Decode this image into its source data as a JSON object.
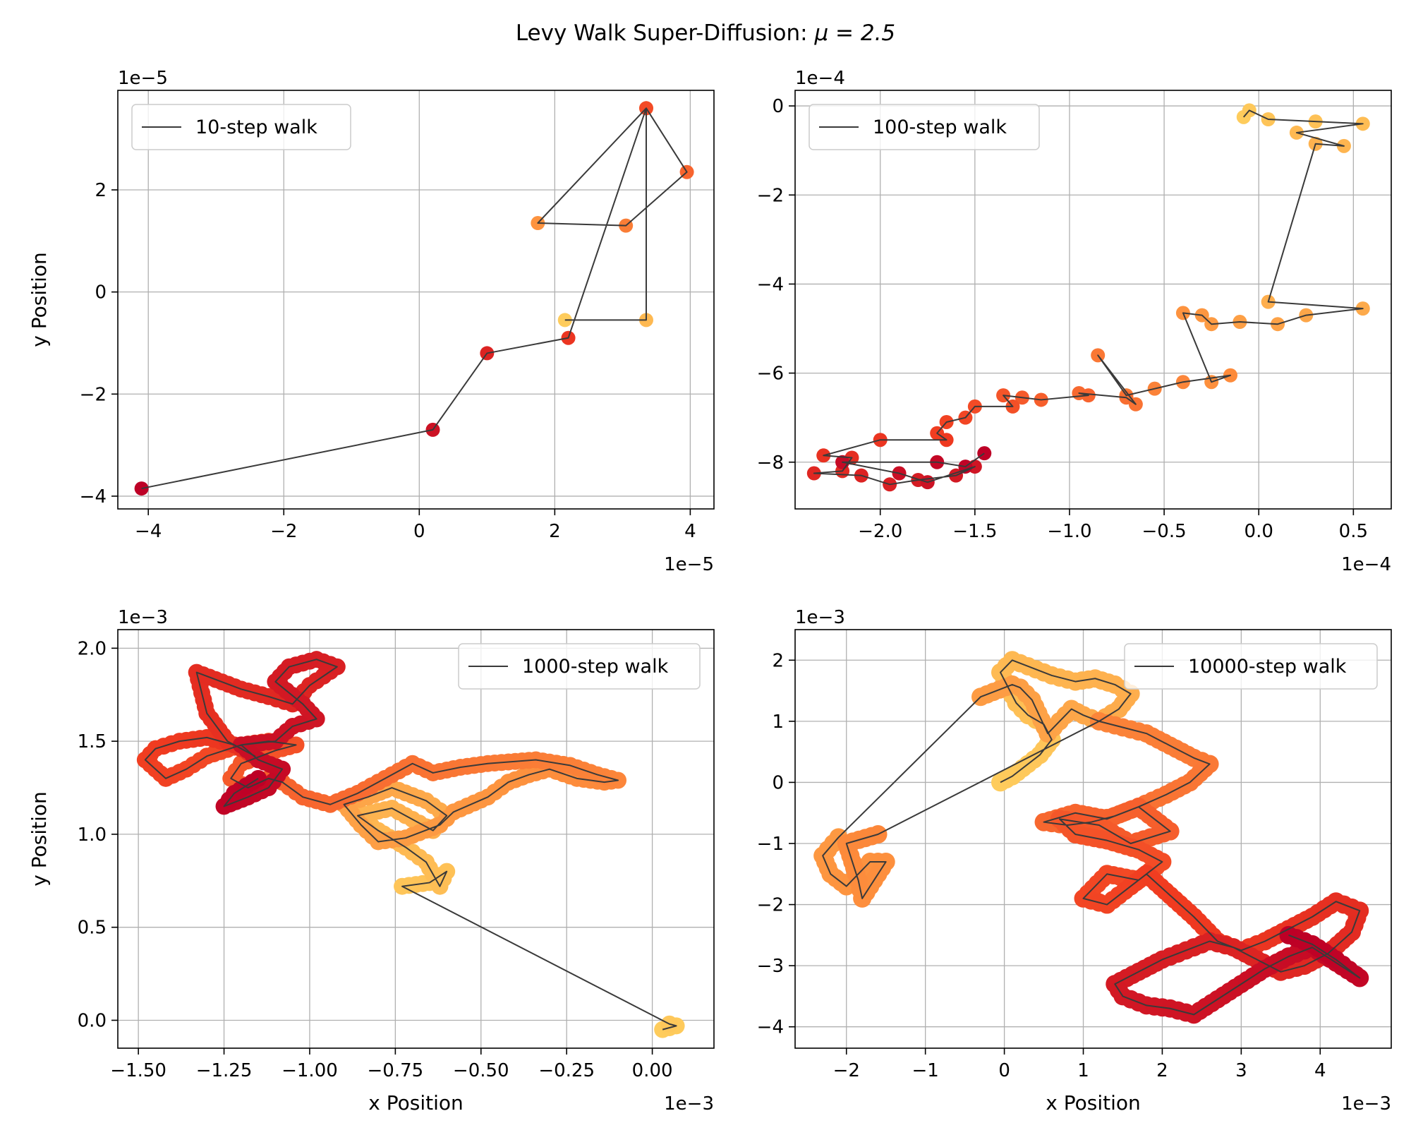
{
  "suptitle": "Levy Walk Super-Diffusion: ",
  "suptitle_math": "μ = 2.5",
  "colors": {
    "line": "#3a3a3a",
    "grid": "#b0b0b0",
    "axes": "#000000",
    "cmap": [
      "#fecc5c",
      "#fd8d3c",
      "#f03b20",
      "#bd0026"
    ]
  },
  "chart_data": [
    {
      "type": "line",
      "series": [
        {
          "name": "10-step walk"
        }
      ],
      "legend": "upper left",
      "grid": true,
      "x_offset_label": "1e−5",
      "y_offset_label": "1e−5",
      "xlabel": "",
      "ylabel": "y Position",
      "xlim": [
        -4.45,
        4.35
      ],
      "ylim": [
        -4.25,
        3.95
      ],
      "xticks": [
        -4,
        -2,
        0,
        2,
        4
      ],
      "yticks": [
        -4,
        -2,
        0,
        2
      ],
      "xticklabels": [
        "−4",
        "−2",
        "0",
        "2",
        "4"
      ],
      "yticklabels": [
        "−4",
        "−2",
        "0",
        "2"
      ],
      "x": [
        2.15,
        3.35,
        3.35,
        1.75,
        3.05,
        3.95,
        3.35,
        2.2,
        1.0,
        0.2,
        -4.1
      ],
      "y": [
        -0.55,
        -0.55,
        3.6,
        1.35,
        1.3,
        2.35,
        3.6,
        -0.9,
        -1.2,
        -2.7,
        -3.85
      ]
    },
    {
      "type": "line",
      "series": [
        {
          "name": "100-step walk"
        }
      ],
      "legend": "upper left",
      "grid": true,
      "x_offset_label": "1e−4",
      "y_offset_label": "1e−4",
      "xlabel": "",
      "ylabel": "",
      "xlim": [
        -2.45,
        0.7
      ],
      "ylim": [
        -9.05,
        0.35
      ],
      "xticks": [
        -2.0,
        -1.5,
        -1.0,
        -0.5,
        0.0,
        0.5
      ],
      "yticks": [
        -8,
        -6,
        -4,
        -2,
        0
      ],
      "xticklabels": [
        "−2.0",
        "−1.5",
        "−1.0",
        "−0.5",
        "0.0",
        "0.5"
      ],
      "yticklabels": [
        "−8",
        "−6",
        "−4",
        "−2",
        "0"
      ],
      "x": [
        -0.08,
        -0.05,
        0.05,
        0.3,
        0.55,
        0.2,
        0.45,
        0.3,
        0.05,
        0.55,
        0.25,
        0.1,
        -0.1,
        -0.25,
        -0.3,
        -0.4,
        -0.25,
        -0.15,
        -0.4,
        -0.55,
        -0.7,
        -0.85,
        -0.65,
        -0.7,
        -0.95,
        -0.9,
        -1.15,
        -1.25,
        -1.35,
        -1.3,
        -1.5,
        -1.55,
        -1.65,
        -1.7,
        -1.65,
        -2.0,
        -2.3,
        -2.15,
        -2.2,
        -2.35,
        -2.1,
        -1.95,
        -1.8,
        -1.6,
        -1.5,
        -1.75,
        -1.9,
        -2.2,
        -1.7,
        -1.55,
        -1.45
      ],
      "y": [
        -0.25,
        -0.1,
        -0.3,
        -0.35,
        -0.4,
        -0.6,
        -0.9,
        -0.85,
        -4.4,
        -4.55,
        -4.7,
        -4.9,
        -4.85,
        -4.9,
        -4.7,
        -4.65,
        -6.2,
        -6.05,
        -6.2,
        -6.35,
        -6.5,
        -5.6,
        -6.7,
        -6.55,
        -6.45,
        -6.5,
        -6.6,
        -6.55,
        -6.5,
        -6.75,
        -6.75,
        -7.0,
        -7.1,
        -7.35,
        -7.5,
        -7.5,
        -7.85,
        -7.9,
        -8.2,
        -8.25,
        -8.3,
        -8.5,
        -8.4,
        -8.3,
        -8.1,
        -8.45,
        -8.25,
        -8.0,
        -8.0,
        -8.1,
        -7.8
      ]
    },
    {
      "type": "line",
      "series": [
        {
          "name": "1000-step walk"
        }
      ],
      "legend": "upper right",
      "grid": true,
      "x_offset_label": "1e−3",
      "y_offset_label": "1e−3",
      "xlabel": "x Position",
      "ylabel": "y Position",
      "xlim": [
        -1.56,
        0.18
      ],
      "ylim": [
        -0.15,
        2.1
      ],
      "xticks": [
        -1.5,
        -1.25,
        -1.0,
        -0.75,
        -0.5,
        -0.25,
        0.0
      ],
      "yticks": [
        0.0,
        0.5,
        1.0,
        1.5,
        2.0
      ],
      "xticklabels": [
        "−1.50",
        "−1.25",
        "−1.00",
        "−0.75",
        "−0.50",
        "−0.25",
        "0.00"
      ],
      "yticklabels": [
        "0.0",
        "0.5",
        "1.0",
        "1.5",
        "2.0"
      ],
      "x": [
        0.03,
        0.07,
        0.05,
        -0.73,
        -0.65,
        -0.6,
        -0.62,
        -0.66,
        -0.72,
        -0.8,
        -0.86,
        -0.76,
        -0.7,
        -0.64,
        -0.6,
        -0.66,
        -0.76,
        -0.83,
        -0.9,
        -0.85,
        -0.8,
        -0.72,
        -0.62,
        -0.58,
        -0.48,
        -0.42,
        -0.36,
        -0.3,
        -0.22,
        -0.14,
        -0.1,
        -0.16,
        -0.24,
        -0.34,
        -0.48,
        -0.56,
        -0.64,
        -0.7,
        -0.78,
        -0.86,
        -0.94,
        -1.02,
        -1.08,
        -1.12,
        -1.18,
        -1.23,
        -1.2,
        -1.1,
        -1.04,
        -1.12,
        -1.2,
        -1.3,
        -1.36,
        -1.42,
        -1.48,
        -1.45,
        -1.38,
        -1.3,
        -1.22,
        -1.16,
        -1.24,
        -1.3,
        -1.33,
        -1.2,
        -1.12,
        -1.05,
        -1.0,
        -0.96,
        -0.92,
        -0.98,
        -1.06,
        -1.1,
        -1.02,
        -0.98,
        -1.05,
        -1.1,
        -1.2,
        -1.15,
        -1.08,
        -1.12,
        -1.18,
        -1.25,
        -1.22,
        -1.15
      ],
      "y": [
        -0.05,
        -0.03,
        -0.02,
        0.72,
        0.74,
        0.8,
        0.72,
        0.85,
        0.93,
        1.02,
        1.1,
        1.14,
        1.08,
        1.02,
        1.1,
        1.18,
        1.25,
        1.2,
        1.16,
        1.05,
        0.96,
        0.98,
        1.05,
        1.12,
        1.2,
        1.28,
        1.32,
        1.35,
        1.3,
        1.28,
        1.29,
        1.32,
        1.37,
        1.4,
        1.38,
        1.36,
        1.33,
        1.38,
        1.3,
        1.22,
        1.16,
        1.2,
        1.28,
        1.3,
        1.25,
        1.3,
        1.38,
        1.45,
        1.48,
        1.5,
        1.48,
        1.42,
        1.35,
        1.3,
        1.4,
        1.46,
        1.5,
        1.52,
        1.48,
        1.42,
        1.5,
        1.65,
        1.87,
        1.78,
        1.74,
        1.7,
        1.8,
        1.85,
        1.9,
        1.94,
        1.9,
        1.82,
        1.7,
        1.62,
        1.58,
        1.5,
        1.48,
        1.4,
        1.35,
        1.25,
        1.2,
        1.15,
        1.22,
        1.3
      ]
    },
    {
      "type": "line",
      "series": [
        {
          "name": "10000-step walk"
        }
      ],
      "legend": "upper right",
      "grid": true,
      "x_offset_label": "1e−3",
      "y_offset_label": "1e−3",
      "xlabel": "x Position",
      "ylabel": "",
      "xlim": [
        -2.65,
        4.9
      ],
      "ylim": [
        -4.35,
        2.5
      ],
      "xticks": [
        -2,
        -1,
        0,
        1,
        2,
        3,
        4
      ],
      "yticks": [
        -4,
        -3,
        -2,
        -1,
        0,
        1,
        2
      ],
      "xticklabels": [
        "−2",
        "−1",
        "0",
        "1",
        "2",
        "3",
        "4"
      ],
      "yticklabels": [
        "−4",
        "−3",
        "−2",
        "−1",
        "0",
        "1",
        "2"
      ],
      "x": [
        -0.05,
        0.1,
        0.3,
        0.45,
        0.6,
        0.5,
        0.3,
        0.15,
        0.05,
        -0.05,
        0.1,
        0.3,
        0.6,
        0.9,
        1.15,
        1.4,
        1.6,
        1.45,
        1.2,
        1.0,
        0.85,
        0.7,
        0.55,
        0.35,
        0.2,
        0.1,
        -0.3,
        -2.1,
        -2.3,
        -2.2,
        -2.0,
        -1.7,
        -1.5,
        -1.8,
        -1.85,
        -2.0,
        -1.6,
        1.2,
        1.5,
        1.8,
        2.1,
        2.4,
        2.6,
        2.35,
        2.05,
        1.7,
        1.4,
        1.1,
        0.8,
        0.5,
        0.9,
        1.3,
        1.7,
        2.1,
        1.6,
        1.2,
        0.7,
        0.9,
        1.3,
        1.7,
        2.0,
        1.7,
        1.3,
        1.0,
        1.3,
        1.6,
        1.8,
        2.1,
        2.4,
        2.7,
        3.0,
        3.3,
        3.6,
        3.9,
        4.2,
        4.5,
        4.4,
        4.1,
        3.8,
        3.5,
        3.2,
        2.9,
        2.6,
        2.3,
        2.0,
        1.7,
        1.4,
        1.5,
        1.8,
        2.1,
        2.4,
        2.7,
        3.0,
        3.3,
        3.6,
        3.9,
        4.2,
        4.5,
        4.45,
        4.2,
        3.9,
        3.6
      ],
      "y": [
        0.0,
        0.1,
        0.3,
        0.45,
        0.7,
        0.95,
        1.1,
        1.3,
        1.55,
        1.8,
        2.0,
        1.9,
        1.75,
        1.65,
        1.7,
        1.6,
        1.45,
        1.2,
        1.0,
        1.1,
        1.2,
        1.0,
        0.8,
        1.35,
        1.55,
        1.6,
        1.4,
        -0.9,
        -1.2,
        -1.5,
        -1.7,
        -1.3,
        -1.3,
        -1.9,
        -1.6,
        -1.0,
        -0.85,
        1.0,
        0.9,
        0.8,
        0.6,
        0.4,
        0.3,
        0.0,
        -0.2,
        -0.4,
        -0.55,
        -0.65,
        -0.7,
        -0.65,
        -0.5,
        -0.6,
        -0.4,
        -0.8,
        -1.0,
        -0.7,
        -0.6,
        -0.85,
        -0.95,
        -1.1,
        -1.3,
        -1.6,
        -1.5,
        -1.9,
        -2.0,
        -1.7,
        -1.5,
        -1.85,
        -2.2,
        -2.6,
        -2.75,
        -2.6,
        -2.4,
        -2.2,
        -1.95,
        -2.1,
        -2.45,
        -2.8,
        -3.0,
        -3.1,
        -2.9,
        -2.7,
        -2.6,
        -2.75,
        -2.9,
        -3.1,
        -3.3,
        -3.5,
        -3.65,
        -3.7,
        -3.8,
        -3.55,
        -3.3,
        -3.05,
        -2.85,
        -2.7,
        -2.95,
        -3.2,
        -3.15,
        -2.9,
        -2.65,
        -2.5
      ]
    }
  ]
}
